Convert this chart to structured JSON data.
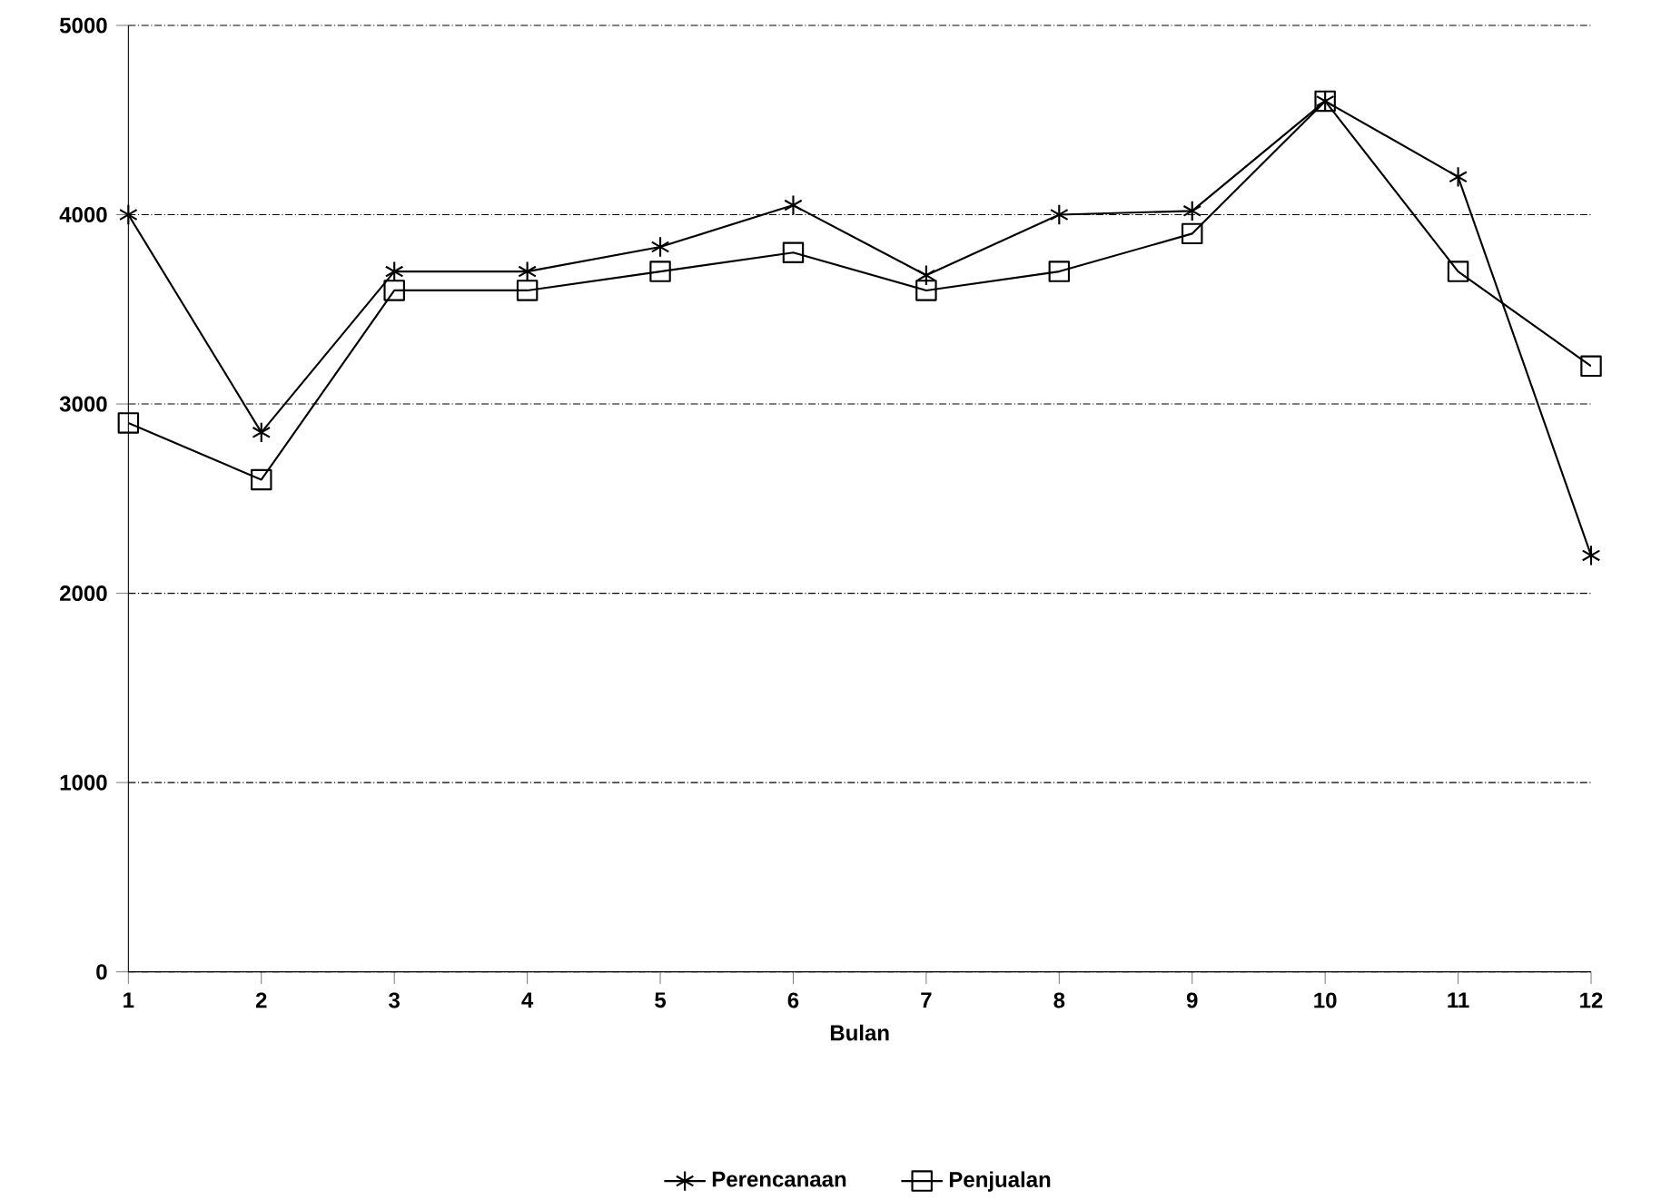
{
  "chart_data": {
    "type": "line",
    "xlabel": "Bulan",
    "x": [
      1,
      2,
      3,
      4,
      5,
      6,
      7,
      8,
      9,
      10,
      11,
      12
    ],
    "series": [
      {
        "name": "Perencanaan",
        "color": "#000000",
        "marker": "cross",
        "values": [
          4000,
          2850,
          3700,
          3700,
          3830,
          4050,
          3680,
          4000,
          4020,
          4600,
          4200,
          2200
        ]
      },
      {
        "name": "Penjualan",
        "color": "#000000",
        "marker": "square",
        "values": [
          2900,
          2600,
          3600,
          3600,
          3700,
          3800,
          3600,
          3700,
          3900,
          4600,
          3700,
          3200
        ]
      }
    ],
    "xlim": [
      1,
      12
    ],
    "xticks": [
      1,
      2,
      3,
      4,
      5,
      6,
      7,
      8,
      9,
      10,
      11,
      12
    ],
    "ylim": [
      0,
      5000
    ],
    "yticks": [
      0,
      1000,
      2000,
      3000,
      4000,
      5000
    ],
    "grid": "y",
    "legend": "bottom",
    "line_style": "solid"
  }
}
